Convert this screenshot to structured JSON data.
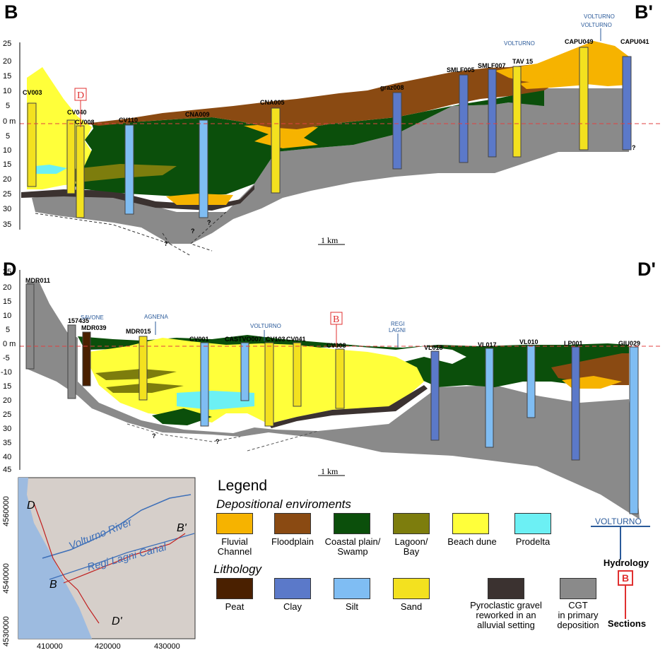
{
  "colors": {
    "fluvial": "#f6b300",
    "floodplain": "#8a4a12",
    "coastal": "#0b4f0b",
    "lagoon": "#7d7d0d",
    "beach": "#ffff3a",
    "prodelta": "#6cf0f4",
    "peat": "#4a2000",
    "clay": "#5b79c9",
    "silt": "#7fbdf3",
    "sand": "#f3e11f",
    "pyro": "#3b3230",
    "cgt": "#8a8a8a"
  },
  "sectionB": {
    "left_label": "B",
    "right_label": "B'",
    "sea_level": "0 m",
    "ticks": [
      "25",
      "20",
      "15",
      "10",
      "5",
      "0 m",
      "5",
      "10",
      "15",
      "20",
      "25",
      "30",
      "35"
    ],
    "boreholes": [
      "CV003",
      "CV040",
      "CV008",
      "CV110",
      "CNA009",
      "CNA005",
      "graz008",
      "SMLF005",
      "SMLF007",
      "TAV 15",
      "CAPU049",
      "CAPU041"
    ],
    "rivers": [
      "VOLTURNO",
      "VOLTURNO",
      "VOLTURNO"
    ],
    "marker": "D",
    "scale": "1 km",
    "q": "?"
  },
  "sectionD": {
    "left_label": "D",
    "right_label": "D'",
    "sea_level": "0 m",
    "ticks": [
      "25",
      "20",
      "15",
      "10",
      "5",
      "0 m",
      "-5",
      "-10",
      "15",
      "20",
      "25",
      "30",
      "35",
      "40",
      "45"
    ],
    "boreholes": [
      "MDR011",
      "157435",
      "MDR039",
      "MDR015",
      "CV001",
      "CASTVO007",
      "CV103",
      "CV041",
      "CV008",
      "VL018",
      "VL017",
      "VL010",
      "LP001",
      "GIU029"
    ],
    "rivers": [
      "SAVONE",
      "AGNENA",
      "VOLTURNO",
      "REGI",
      "LAGNI"
    ],
    "marker": "B",
    "scale": "1 km",
    "q": "?"
  },
  "map": {
    "labels": [
      "D",
      "B'",
      "B",
      "D'"
    ],
    "rivers": [
      "Volturno River",
      "Regi Lagni Canal"
    ],
    "y_ticks": [
      "4560000",
      "4540000",
      "4530000"
    ],
    "x_ticks": [
      "410000",
      "420000",
      "430000"
    ]
  },
  "legend": {
    "title": "Legend",
    "dep_title": "Depositional enviroments",
    "lith_title": "Lithology",
    "dep": [
      {
        "key": "fluvial",
        "l1": "Fluvial",
        "l2": "Channel"
      },
      {
        "key": "floodplain",
        "l1": "Floodplain",
        "l2": ""
      },
      {
        "key": "coastal",
        "l1": "Coastal plain/",
        "l2": "Swamp"
      },
      {
        "key": "lagoon",
        "l1": "Lagoon/",
        "l2": "Bay"
      },
      {
        "key": "beach",
        "l1": "Beach dune",
        "l2": ""
      },
      {
        "key": "prodelta",
        "l1": "Prodelta",
        "l2": ""
      }
    ],
    "lith": [
      {
        "key": "peat",
        "l1": "Peat",
        "l2": "",
        "l3": ""
      },
      {
        "key": "clay",
        "l1": "Clay",
        "l2": "",
        "l3": ""
      },
      {
        "key": "silt",
        "l1": "Silt",
        "l2": "",
        "l3": ""
      },
      {
        "key": "sand",
        "l1": "Sand",
        "l2": "",
        "l3": ""
      },
      {
        "key": "pyro",
        "l1": "Pyroclastic gravel",
        "l2": "reworked in an",
        "l3": "alluvial setting"
      },
      {
        "key": "cgt",
        "l1": "CGT",
        "l2": "in primary",
        "l3": "deposition"
      }
    ],
    "hydrology_sample": "VOLTURNO",
    "hydrology_label": "Hydrology",
    "sections_sample": "B",
    "sections_label": "Sections"
  }
}
